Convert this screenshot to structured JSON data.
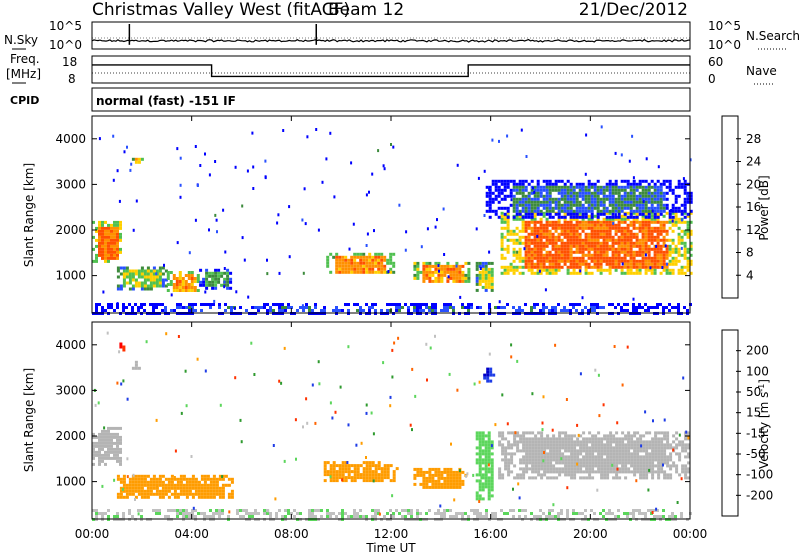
{
  "header": {
    "station": "Christmas Valley West (fitACF)",
    "beam": "Beam 12",
    "date": "21/Dec/2012"
  },
  "noise_panel": {
    "left_label": "N.Sky",
    "right_label": "N.Search",
    "left_ticks": [
      "10^5",
      "10^0"
    ],
    "right_ticks": [
      "10^5",
      "10^0"
    ]
  },
  "freq_panel": {
    "left_label_1": "Freq.",
    "left_label_2": "[MHz]",
    "right_label": "Nave",
    "left_ticks": [
      "18",
      "8"
    ],
    "right_ticks": [
      "60",
      "0"
    ]
  },
  "cpid_panel": {
    "label": "CPID",
    "value": "normal (fast) -151 IF"
  },
  "colors": {
    "power": [
      "#0000ff",
      "#2850ff",
      "#3c8a3c",
      "#50c050",
      "#ffd000",
      "#ff9000",
      "#ff5000",
      "#ff0000"
    ],
    "velocity": [
      "#0000c8",
      "#1e3ce6",
      "#2e9a2e",
      "#5cd65c",
      "#c0c0c0",
      "#ff9c00",
      "#ff6400",
      "#ff3200",
      "#ff0000"
    ],
    "ground_scatter": "#b4b4b4"
  },
  "colorbars": {
    "power": {
      "label": "Power [dB]",
      "ticks": [
        "4",
        "8",
        "12",
        "16",
        "20",
        "24",
        "28"
      ]
    },
    "velocity": {
      "label_main": "Velocity [m s",
      "label_sup": "-1",
      "label_end": "]",
      "ticks": [
        "200",
        "100",
        "50",
        "15",
        "-15",
        "-50",
        "-100",
        "-200"
      ]
    }
  },
  "x_axis": {
    "label": "Time UT",
    "ticks": [
      "00:00",
      "04:00",
      "08:00",
      "12:00",
      "16:00",
      "20:00",
      "00:00"
    ]
  },
  "chart_data": [
    {
      "type": "line",
      "title": "",
      "series": [
        {
          "name": "N.Sky"
        },
        {
          "name": "N.Search"
        }
      ],
      "y_scale": "log",
      "ylim": [
        1,
        100000
      ],
      "xlim_hours": [
        0,
        24
      ],
      "spikes": [
        {
          "x": 1.5,
          "value": 100000
        },
        {
          "x": 9.0,
          "value": 100000
        }
      ]
    },
    {
      "type": "line",
      "series": [
        {
          "name": "Freq.",
          "units": "MHz",
          "x": [
            0,
            4.8,
            4.8,
            15.1,
            15.1,
            24
          ],
          "values": [
            15,
            15,
            10,
            10,
            15,
            15
          ]
        },
        {
          "name": "Nave",
          "x": [
            0,
            24
          ],
          "values": [
            20,
            20
          ]
        }
      ],
      "ylim_freq": [
        8,
        18
      ],
      "ylim_nave": [
        0,
        60
      ]
    },
    {
      "type": "heatmap",
      "quantity": "Power",
      "units": "dB",
      "xlabel": "Time UT",
      "ylabel": "Slant Range [km]",
      "xlim_hours": [
        0,
        24
      ],
      "ylim_km": [
        180,
        4500
      ],
      "y_ticks": [
        1000,
        2000,
        3000,
        4000
      ],
      "color_scale": [
        4,
        8,
        12,
        16,
        20,
        24,
        28
      ],
      "regions": [
        {
          "t": [
            0.0,
            1.2
          ],
          "range": [
            1300,
            2200
          ],
          "power": 26
        },
        {
          "t": [
            1.0,
            3.0
          ],
          "range": [
            700,
            1200
          ],
          "power": 18
        },
        {
          "t": [
            3.0,
            4.3
          ],
          "range": [
            650,
            1100
          ],
          "power": 24
        },
        {
          "t": [
            4.3,
            5.6
          ],
          "range": [
            750,
            1150
          ],
          "power": 14
        },
        {
          "t": [
            1.6,
            2.0
          ],
          "range": [
            3500,
            3650
          ],
          "power": 22
        },
        {
          "t": [
            9.4,
            12.1
          ],
          "range": [
            1050,
            1500
          ],
          "power": 24
        },
        {
          "t": [
            12.9,
            15.1
          ],
          "range": [
            850,
            1300
          ],
          "power": 24
        },
        {
          "t": [
            15.4,
            16.1
          ],
          "range": [
            700,
            1300
          ],
          "power": 18
        },
        {
          "t": [
            16.4,
            24.0
          ],
          "range": [
            1050,
            2400
          ],
          "power": 27
        },
        {
          "t": [
            15.8,
            24.0
          ],
          "range": [
            2300,
            3100
          ],
          "power": 10
        },
        {
          "t": [
            0.0,
            24.0
          ],
          "range": [
            200,
            400
          ],
          "power": 8
        }
      ]
    },
    {
      "type": "heatmap",
      "quantity": "Velocity",
      "units": "m s-1",
      "xlabel": "Time UT",
      "ylabel": "Slant Range [km]",
      "xlim_hours": [
        0,
        24
      ],
      "ylim_km": [
        180,
        4500
      ],
      "y_ticks": [
        1000,
        2000,
        3000,
        4000
      ],
      "color_scale": [
        200,
        100,
        50,
        15,
        -15,
        -50,
        -100,
        -200
      ],
      "regions": [
        {
          "t": [
            0.0,
            1.1
          ],
          "range": [
            1400,
            2200
          ],
          "velocity": 0,
          "ground_scatter": true
        },
        {
          "t": [
            1.0,
            5.6
          ],
          "range": [
            650,
            1150
          ],
          "velocity": -40
        },
        {
          "t": [
            1.6,
            2.0
          ],
          "range": [
            3500,
            3650
          ],
          "velocity": 0,
          "ground_scatter": true
        },
        {
          "t": [
            1.1,
            1.3
          ],
          "range": [
            3850,
            4050
          ],
          "velocity": -200
        },
        {
          "t": [
            9.3,
            12.2
          ],
          "range": [
            1050,
            1450
          ],
          "velocity": -40
        },
        {
          "t": [
            12.9,
            15.0
          ],
          "range": [
            850,
            1300
          ],
          "velocity": -40
        },
        {
          "t": [
            15.4,
            16.1
          ],
          "range": [
            650,
            2100
          ],
          "velocity": 30
        },
        {
          "t": [
            15.7,
            16.1
          ],
          "range": [
            3200,
            3500
          ],
          "velocity": 200
        },
        {
          "t": [
            16.3,
            24.0
          ],
          "range": [
            1100,
            2100
          ],
          "velocity": 0,
          "ground_scatter": true
        },
        {
          "t": [
            0.0,
            24.0
          ],
          "range": [
            200,
            400
          ],
          "velocity": 10
        }
      ]
    }
  ]
}
